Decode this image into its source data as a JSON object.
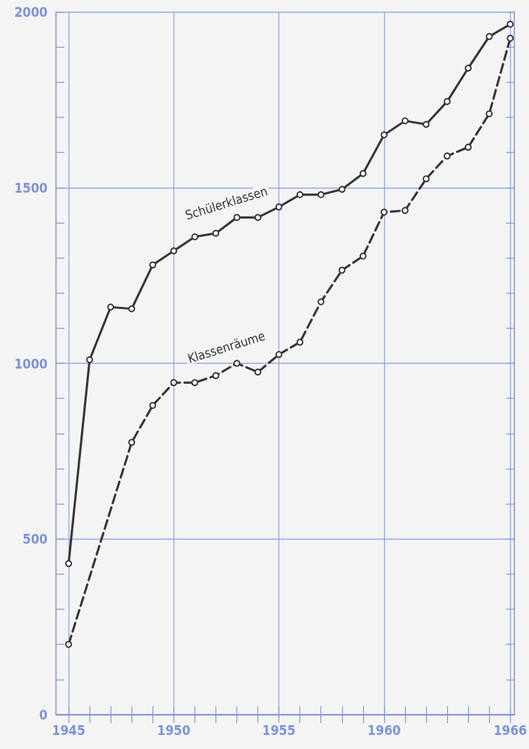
{
  "chart_data": {
    "type": "line",
    "xlim": [
      1944.4,
      1966.2
    ],
    "xticks": [
      1945,
      {
        "value": 1946,
        "label": null
      },
      {
        "value": 1947,
        "label": null
      },
      {
        "value": 1948,
        "label": null
      },
      {
        "value": 1949,
        "label": null
      },
      1950,
      {
        "value": 1951,
        "label": null
      },
      {
        "value": 1952,
        "label": null
      },
      {
        "value": 1953,
        "label": null
      },
      {
        "value": 1954,
        "label": null
      },
      1955,
      {
        "value": 1956,
        "label": null
      },
      {
        "value": 1957,
        "label": null
      },
      {
        "value": 1958,
        "label": null
      },
      {
        "value": 1959,
        "label": null
      },
      1960,
      {
        "value": 1961,
        "label": null
      },
      {
        "value": 1962,
        "label": null
      },
      {
        "value": 1963,
        "label": null
      },
      {
        "value": 1964,
        "label": null
      },
      {
        "value": 1965,
        "label": null
      },
      1966
    ],
    "ylim": [
      0,
      2000
    ],
    "yticks": [
      0,
      {
        "value": 100,
        "label": null
      },
      {
        "value": 200,
        "label": null
      },
      {
        "value": 300,
        "label": null
      },
      {
        "value": 400,
        "label": null
      },
      500,
      {
        "value": 600,
        "label": null
      },
      {
        "value": 700,
        "label": null
      },
      {
        "value": 800,
        "label": null
      },
      {
        "value": 900,
        "label": null
      },
      1000,
      {
        "value": 1100,
        "label": null
      },
      {
        "value": 1200,
        "label": null
      },
      {
        "value": 1300,
        "label": null
      },
      {
        "value": 1400,
        "label": null
      },
      1500,
      {
        "value": 1600,
        "label": null
      },
      {
        "value": 1700,
        "label": null
      },
      {
        "value": 1800,
        "label": null
      },
      {
        "value": 1900,
        "label": null
      },
      2000
    ],
    "grid": true,
    "marker": "circle",
    "legend": false,
    "series": [
      {
        "name": "Schülerklassen",
        "color": "#3a3535",
        "line_style": "solid",
        "x": [
          1945,
          1946,
          1947,
          1948,
          1949,
          1950,
          1951,
          1952,
          1953,
          1954,
          1955,
          1956,
          1957,
          1958,
          1959,
          1960,
          1961,
          1962,
          1963,
          1964,
          1965,
          1966
        ],
        "values": [
          430,
          1010,
          1160,
          1155,
          1280,
          1320,
          1360,
          1370,
          1415,
          1415,
          1445,
          1480,
          1480,
          1495,
          1540,
          1650,
          1690,
          1680,
          1745,
          1840,
          1930,
          1965
        ]
      },
      {
        "name": "Klassenräume",
        "color": "#3a3535",
        "line_style": "dashed",
        "x": [
          1945,
          1948,
          1949,
          1950,
          1951,
          1952,
          1953,
          1954,
          1955,
          1956,
          1957,
          1958,
          1959,
          1960,
          1961,
          1962,
          1963,
          1964,
          1965,
          1966
        ],
        "values": [
          200,
          775,
          880,
          945,
          945,
          965,
          1000,
          975,
          1025,
          1060,
          1175,
          1265,
          1305,
          1430,
          1435,
          1525,
          1590,
          1615,
          1710,
          1925
        ]
      }
    ]
  }
}
